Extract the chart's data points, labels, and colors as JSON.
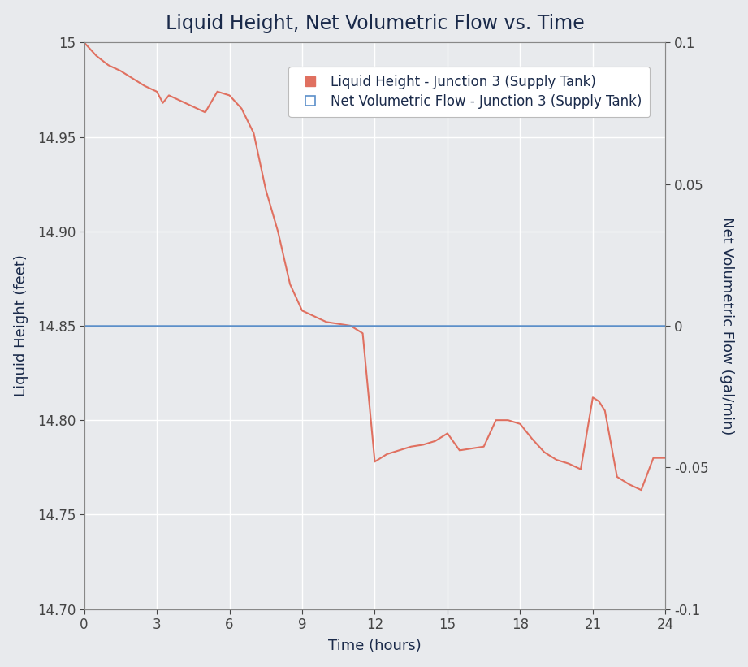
{
  "title": "Liquid Height, Net Volumetric Flow vs. Time",
  "xlabel": "Time (hours)",
  "ylabel_left": "Liquid Height (feet)",
  "ylabel_right": "Net Volumetric Flow (gal/min)",
  "legend_label_red": "Liquid Height - Junction 3 (Supply Tank)",
  "legend_label_blue": "Net Volumetric Flow - Junction 3 (Supply Tank)",
  "xlim": [
    0,
    24
  ],
  "ylim_left": [
    14.7,
    15.0
  ],
  "ylim_right": [
    -0.1,
    0.1
  ],
  "xticks": [
    0,
    3,
    6,
    9,
    12,
    15,
    18,
    21,
    24
  ],
  "yticks_left": [
    14.7,
    14.75,
    14.8,
    14.85,
    14.9,
    14.95,
    15.0
  ],
  "yticks_right": [
    -0.1,
    -0.05,
    0,
    0.05,
    0.1
  ],
  "background_color": "#e8eaed",
  "plot_bg_color": "#e8eaed",
  "grid_color": "#ffffff",
  "red_line_color": "#e07060",
  "blue_line_color": "#5b8fc9",
  "title_color": "#1a2a4a",
  "axis_label_color": "#1a2a4a",
  "tick_color": "#444444",
  "time_data": [
    0,
    0.5,
    1,
    1.5,
    2,
    2.5,
    3,
    3.25,
    3.5,
    4,
    4.5,
    5,
    5.5,
    5.75,
    6,
    6.5,
    7,
    7.5,
    8,
    8.5,
    9,
    9.5,
    10,
    10.5,
    11,
    11.25,
    11.5,
    12,
    12.5,
    13,
    13.5,
    14,
    14.5,
    15,
    15.5,
    16,
    16.5,
    17,
    17.5,
    18,
    18.5,
    19,
    19.5,
    20,
    20.5,
    21,
    21.25,
    21.5,
    22,
    22.5,
    23,
    23.5,
    24
  ],
  "height_data": [
    15.0,
    14.993,
    14.988,
    14.985,
    14.981,
    14.977,
    14.974,
    14.968,
    14.972,
    14.969,
    14.966,
    14.963,
    14.974,
    14.973,
    14.972,
    14.965,
    14.952,
    14.922,
    14.9,
    14.872,
    14.858,
    14.855,
    14.852,
    14.851,
    14.85,
    14.848,
    14.846,
    14.778,
    14.782,
    14.784,
    14.786,
    14.787,
    14.789,
    14.793,
    14.784,
    14.785,
    14.786,
    14.8,
    14.8,
    14.798,
    14.79,
    14.783,
    14.779,
    14.777,
    14.774,
    14.812,
    14.81,
    14.805,
    14.77,
    14.766,
    14.763,
    14.78,
    14.78
  ],
  "flow_value": 0.0,
  "title_fontsize": 17,
  "axis_label_fontsize": 13,
  "tick_fontsize": 12,
  "legend_fontsize": 12,
  "figsize": [
    9.21,
    8.21
  ],
  "dpi": 100
}
